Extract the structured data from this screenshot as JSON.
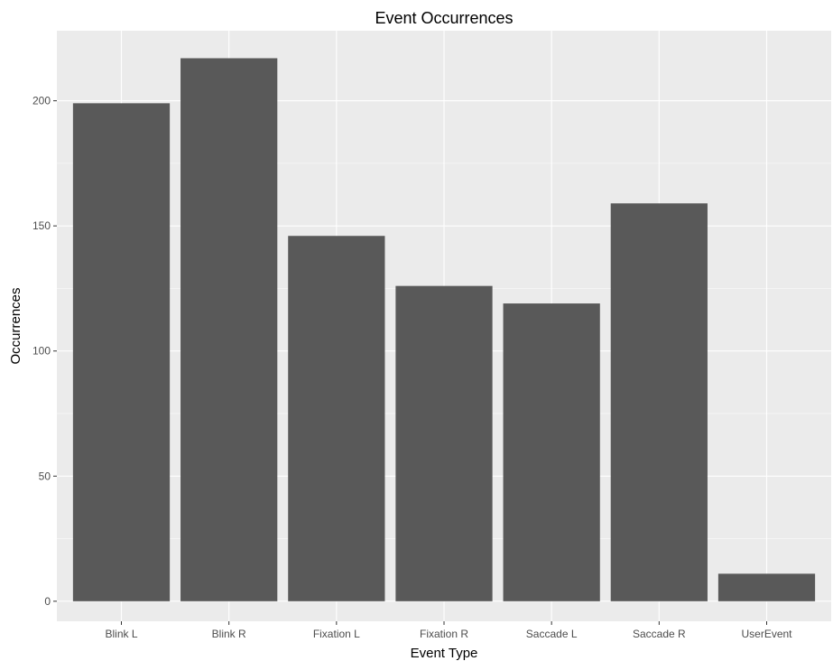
{
  "chart_data": {
    "type": "bar",
    "title": "Event Occurrences",
    "xlabel": "Event Type",
    "ylabel": "Occurrences",
    "categories": [
      "Blink L",
      "Blink R",
      "Fixation L",
      "Fixation R",
      "Saccade L",
      "Saccade R",
      "UserEvent"
    ],
    "values": [
      199,
      217,
      146,
      126,
      119,
      159,
      11
    ],
    "ylim": [
      -8,
      228
    ],
    "yticks": [
      0,
      50,
      100,
      150,
      200
    ],
    "grid": true,
    "legend": "none",
    "colors": {
      "panel": "#ebebeb",
      "bar": "#595959",
      "grid": "#ffffff",
      "tick_text": "#4d4d4d",
      "text": "#000000"
    }
  }
}
